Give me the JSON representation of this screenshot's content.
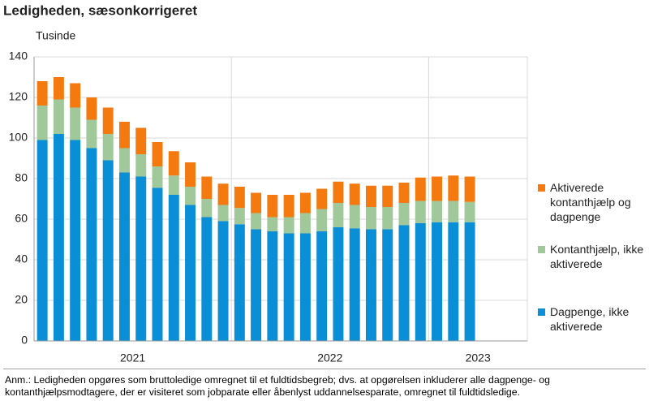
{
  "chart_data": {
    "type": "stacked-bar",
    "title": "Ledigheden, sæsonkorrigeret",
    "y_unit": "Tusinde",
    "categories": [
      null,
      null,
      null,
      null,
      null,
      null,
      null,
      null,
      null,
      null,
      null,
      null,
      null,
      null,
      null,
      null,
      null,
      null,
      null,
      null,
      null,
      null,
      null,
      null,
      null,
      null,
      null,
      null,
      null,
      null
    ],
    "x_groups": [
      {
        "label": "2021",
        "size": 12
      },
      {
        "label": "2022",
        "size": 12
      },
      {
        "label": "2023",
        "size": 6
      }
    ],
    "series": [
      {
        "name": "Dagpenge, ikke aktiverede",
        "color": "#0a8fd6",
        "values": [
          99,
          102,
          99,
          95,
          89,
          83,
          81,
          75.5,
          72,
          67,
          61,
          59,
          57.5,
          55,
          54,
          53,
          53,
          54,
          56,
          55.5,
          55,
          55,
          57,
          58,
          58.5,
          58.5,
          58.5,
          null,
          null,
          null
        ]
      },
      {
        "name": "Kontanthjælp, ikke aktiverede",
        "color": "#a0c89b",
        "values": [
          17,
          17,
          16,
          14,
          13,
          12,
          11,
          10.5,
          9.5,
          9,
          9,
          8,
          8,
          8,
          7,
          8,
          10,
          11,
          12,
          11.5,
          11,
          11,
          11,
          11,
          10.5,
          10.5,
          10,
          null,
          null,
          null
        ]
      },
      {
        "name": "Aktiverede kontanthjælp og dagpenge",
        "color": "#f47a10",
        "values": [
          12,
          11,
          12,
          11,
          13,
          13,
          13,
          12,
          12,
          12,
          11,
          10.5,
          10.5,
          10,
          11,
          11,
          10,
          10,
          10.5,
          10.5,
          10.5,
          10.5,
          10,
          11.5,
          12,
          12.5,
          12.5,
          null,
          null,
          null
        ]
      }
    ],
    "ylim": [
      0,
      140
    ],
    "yticks": [
      0,
      20,
      40,
      60,
      80,
      100,
      120,
      140
    ],
    "grid": true,
    "note": "Anm.: Ledigheden opgøres som bruttoledige omregnet til et fuldtidsbegreb; dvs. at opgørelsen inkluderer alle dagpenge- og kontanthjælpsmodtagere, der er visiteret som jobparate eller åbenlyst uddannelsesparate, omregnet til fuldtidsledige."
  }
}
